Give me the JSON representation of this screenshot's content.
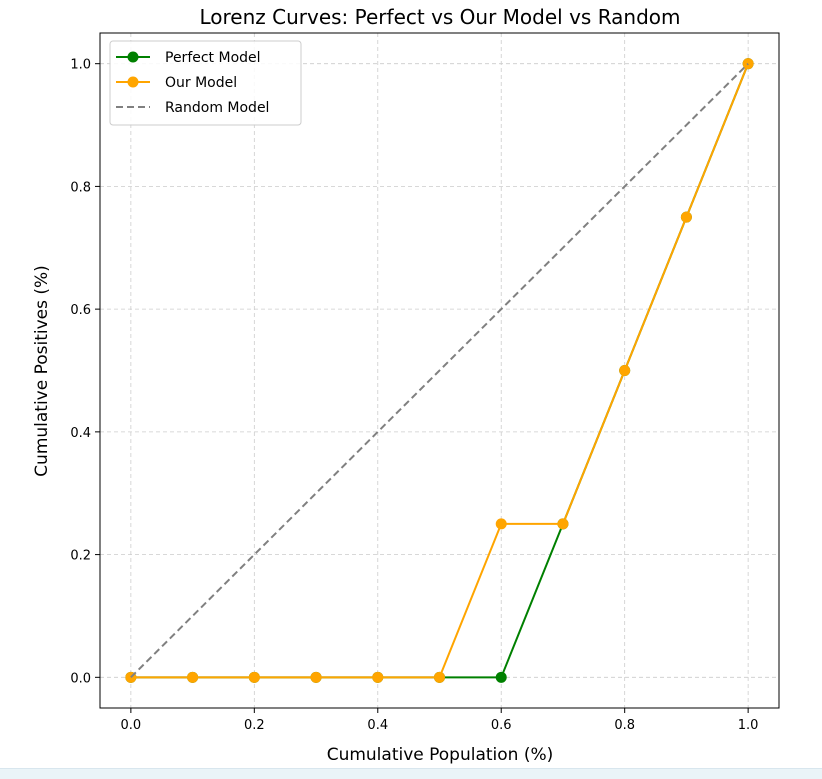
{
  "chart_data": {
    "type": "line",
    "title": "Lorenz Curves: Perfect vs Our Model vs Random",
    "xlabel": "Cumulative Population (%)",
    "ylabel": "Cumulative Positives (%)",
    "xlim": [
      -0.05,
      1.05
    ],
    "ylim": [
      -0.05,
      1.05
    ],
    "xticks": [
      "0.0",
      "0.2",
      "0.4",
      "0.6",
      "0.8",
      "1.0"
    ],
    "yticks": [
      "0.0",
      "0.2",
      "0.4",
      "0.6",
      "0.8",
      "1.0"
    ],
    "grid": true,
    "legend_position": "top-left",
    "series": [
      {
        "name": "Perfect Model",
        "color": "#008000",
        "style": "solid",
        "marker": "circle",
        "x": [
          0.0,
          0.1,
          0.2,
          0.3,
          0.4,
          0.5,
          0.6,
          0.7,
          0.8,
          0.9,
          1.0
        ],
        "y": [
          0.0,
          0.0,
          0.0,
          0.0,
          0.0,
          0.0,
          0.0,
          0.25,
          0.5,
          0.75,
          1.0
        ]
      },
      {
        "name": "Our Model",
        "color": "#ffa500",
        "style": "solid",
        "marker": "circle",
        "x": [
          0.0,
          0.1,
          0.2,
          0.3,
          0.4,
          0.5,
          0.6,
          0.7,
          0.8,
          0.9,
          1.0
        ],
        "y": [
          0.0,
          0.0,
          0.0,
          0.0,
          0.0,
          0.0,
          0.25,
          0.25,
          0.5,
          0.75,
          1.0
        ]
      },
      {
        "name": "Random Model",
        "color": "#808080",
        "style": "dashed",
        "marker": "none",
        "x": [
          0.0,
          1.0
        ],
        "y": [
          0.0,
          1.0
        ]
      }
    ]
  }
}
